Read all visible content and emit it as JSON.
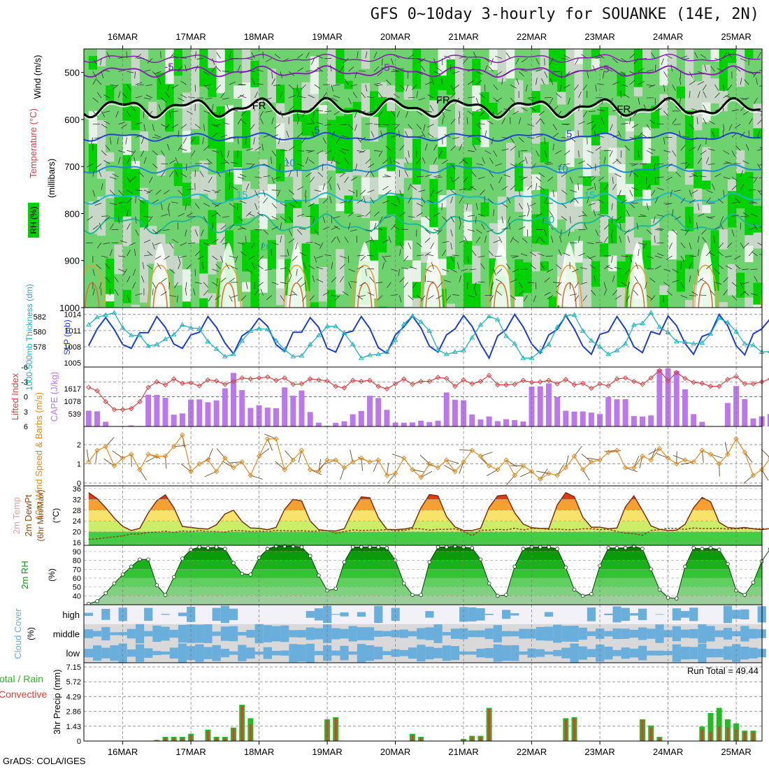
{
  "title": "GFS 0~10day 3-hourly for SOUANKE (14E, 2N)",
  "credit": "GrADS: COLA/IGES",
  "colors": {
    "rh_dark": "#00d200",
    "rh_mid": "#6ed36e",
    "rh_light": "#c8d7c8",
    "rh_pale": "#e8f2e8",
    "cape": "#bb77ee",
    "lifted": "#d94040",
    "slp": "#1d3fd0",
    "thk": "#1fb3c0",
    "wind": "#e08a1e",
    "temp": "#e9a2a0",
    "dew": "#8b4513",
    "rh": "#00a000",
    "cloud": "#6aaedc",
    "cloud_bg": "#d9d9d9",
    "precip_total": "#22bb22",
    "precip_conv": "#ee3333"
  },
  "chart_data": [
    {
      "type": "heatmap",
      "panel": "upper-air",
      "ylabels": [
        "Wind (m/s)",
        "Temperature (°C)",
        "RH (%)",
        "(millibars)"
      ],
      "y_ticks": [
        "500",
        "600",
        "700",
        "800",
        "900",
        "1000"
      ],
      "ylim": [
        1000,
        450
      ],
      "x_ticks": [
        "16MAR",
        "17MAR",
        "18MAR",
        "19MAR",
        "20MAR",
        "21MAR",
        "22MAR",
        "23MAR",
        "24MAR",
        "25MAR"
      ],
      "contour_labels": [
        {
          "text": "-5",
          "day": 0.68,
          "p": 495
        },
        {
          "text": "-5",
          "day": 3.85,
          "p": 497
        },
        {
          "text": "-5",
          "day": 7.07,
          "p": 500
        },
        {
          "text": "FR",
          "day": 2.0,
          "p": 578
        },
        {
          "text": "FR",
          "day": 4.7,
          "p": 566
        },
        {
          "text": "FR",
          "day": 7.35,
          "p": 585
        },
        {
          "text": "5",
          "day": 2.85,
          "p": 630
        },
        {
          "text": "5",
          "day": 6.55,
          "p": 638
        },
        {
          "text": "10",
          "day": 2.45,
          "p": 700
        },
        {
          "text": "10",
          "day": 6.45,
          "p": 712
        },
        {
          "text": "15",
          "day": 1.75,
          "p": 767
        },
        {
          "text": "15",
          "day": 6.85,
          "p": 768
        },
        {
          "text": "20",
          "day": 6.25,
          "p": 820
        },
        {
          "text": "20",
          "day": 2.1,
          "p": 878
        }
      ]
    },
    {
      "type": "line",
      "panel": "slp-thickness",
      "ylabel_left": "1000-500mb Thickness (dm)",
      "ylabel_right": "SLP (mb)",
      "left_ticks": [
        "582",
        "580",
        "578"
      ],
      "right_ticks": [
        "1014",
        "1011",
        "1008",
        "1005"
      ],
      "series": [
        {
          "name": "SLP",
          "values": [
            1008.2,
            1011.3,
            1013.4,
            1011.2,
            1008.4,
            1007.7,
            1010.6,
            1010.6,
            1013.6,
            1011.6,
            1008.5,
            1007.7,
            1010.2,
            1010.7,
            1013.6,
            1011.6,
            1008.7,
            1006.7,
            1010.0,
            1011.1,
            1013.3,
            1011.8,
            1008.4,
            1007.1,
            1010.7,
            1010.7,
            1013.4,
            1011.6,
            1007.7,
            1007.0,
            1010.5,
            1010.9,
            1013.6,
            1011.4,
            1007.8,
            1006.8,
            1010.2,
            1011.7,
            1013.7,
            1011.5,
            1008.1,
            1007.0,
            1010.2,
            1011.3,
            1013.8,
            1011.8,
            1008.5,
            1005.9,
            1010.0,
            1011.2,
            1014.0,
            1011.7,
            1008.5,
            1006.8,
            1010.2,
            1011.2,
            1013.8,
            1011.3,
            1008.1,
            1006.6,
            1010.3,
            1010.8,
            1013.6,
            1011.3,
            1008.0,
            1006.9,
            1010.8,
            1010.3,
            1013.7,
            1011.9,
            1008.6,
            1006.6,
            1009.9,
            1010.5,
            1014.0,
            1011.9,
            1008.2,
            1006.5,
            1010.4,
            1011.3,
            1013.2
          ]
        },
        {
          "name": "Thickness",
          "values": [
            580.9,
            581.9,
            582.2,
            582.5,
            580.5,
            579.5,
            579.5,
            578.1,
            578.3,
            579.0,
            579.6,
            580.9,
            580.5,
            580.4,
            578.7,
            577.7,
            576.7,
            577.0,
            578.8,
            580.1,
            580.4,
            580.3,
            578.8,
            577.6,
            576.7,
            576.8,
            578.3,
            579.5,
            580.7,
            580.7,
            579.8,
            578.3,
            576.5,
            576.9,
            577.0,
            577.3,
            578.9,
            581.0,
            582.1,
            581.3,
            580.1,
            577.6,
            577.0,
            577.3,
            577.5,
            579.2,
            580.9,
            582.0,
            581.6,
            579.4,
            578.4,
            576.5,
            576.5,
            577.4,
            578.3,
            580.6,
            582.1,
            582.2,
            580.1,
            578.8,
            578.0,
            577.0,
            577.5,
            578.4,
            580.9,
            581.1,
            582.5,
            580.6,
            579.9,
            578.7,
            578.6,
            578.4,
            578.5,
            579.7,
            581.8,
            581.2,
            580.0,
            578.4,
            578.2,
            577.3,
            577.4
          ]
        }
      ]
    },
    {
      "type": "bar",
      "panel": "cape-lifted-index",
      "ylabel_left": "Lifted Index",
      "ylabel_right": "CAPE (J/kg)",
      "left_ticks": [
        "-6",
        "-3",
        "0",
        "3",
        "6"
      ],
      "right_ticks": [
        "1617",
        "1078",
        "539"
      ],
      "series": [
        {
          "name": "CAPE",
          "values": [
            673,
            645,
            199,
            12,
            11,
            44,
            18,
            1357,
            1350,
            1225,
            503,
            558,
            1151,
            1156,
            1034,
            1114,
            1629,
            2286,
            1553,
            791,
            906,
            804,
            780,
            1670,
            1313,
            1538,
            616,
            161,
            26,
            156,
            220,
            520,
            661,
            1311,
            1215,
            710,
            166,
            162,
            172,
            246,
            187,
            246,
            1453,
            1142,
            1120,
            512,
            299,
            427,
            227,
            308,
            268,
            211,
            1702,
            1715,
            1842,
            1258,
            671,
            634,
            641,
            592,
            531,
            1252,
            1162,
            1164,
            445,
            425,
            471,
            2443,
            2486,
            2370,
            1588,
            527,
            197,
            16,
            15,
            1002,
            1729,
            1170,
            342,
            434,
            527,
            698
          ]
        },
        {
          "name": "Lifted Index",
          "values": [
            -1.9,
            -1.2,
            1.0,
            2.6,
            2.6,
            2.4,
            1.0,
            -1.9,
            -3.0,
            -2.4,
            -3.6,
            -2.7,
            -2.8,
            -2.2,
            -3.4,
            -3.2,
            -2.5,
            -3.1,
            -3.8,
            -3.6,
            -3.8,
            -4.0,
            -3.3,
            -3.8,
            -2.5,
            -2.6,
            -3.6,
            -3.4,
            -3.2,
            -2.1,
            -1.8,
            -3.3,
            -3.1,
            -3.3,
            -2.1,
            -1.6,
            -2.6,
            -3.6,
            -2.5,
            -3.1,
            -3.1,
            -3.9,
            -3.7,
            -2.1,
            -3.4,
            -2.6,
            -3.1,
            -4.3,
            -2.4,
            -2.4,
            -2.5,
            -3.3,
            -2.9,
            -3.0,
            -3.3,
            -2.6,
            -3.5,
            -2.4,
            -2.7,
            -1.7,
            -2.6,
            -2.2,
            -3.6,
            -3.8,
            -3.1,
            -2.5,
            -3.8,
            -5.3,
            -3.2,
            -4.9,
            -3.7,
            -2.9,
            -2.7,
            -2.1,
            -2.1,
            -3.5,
            -4.1,
            -2.6,
            -2.6,
            -3.0,
            -3.6,
            -3.3
          ]
        }
      ]
    },
    {
      "type": "line",
      "panel": "wind10m",
      "ylabel": "10m Wind Speed & Barbs (m/s)",
      "y_ticks": [
        "0",
        "1",
        "2"
      ],
      "ylim": [
        0,
        2.8
      ],
      "series": [
        {
          "name": "10m Wind Speed",
          "values": [
            1.1,
            1.7,
            1.9,
            0.9,
            1.3,
            1.5,
            0.7,
            1.5,
            1.4,
            1.4,
            1.9,
            2.5,
            0.6,
            1.0,
            1.2,
            0.6,
            1.3,
            0.8,
            1.1,
            0.4,
            1.4,
            2.3,
            2.3,
            0.7,
            1.2,
            1.7,
            0.7,
            0.6,
            1.2,
            1.2,
            0.8,
            1.1,
            1.3,
            1.1,
            1.2,
            0.4,
            0.5,
            1.3,
            0.7,
            0.3,
            1.0,
            0.8,
            1.2,
            0.6,
            1.1,
            1.7,
            1.4,
            0.9,
            0.7,
            1.2,
            0.4,
            0.9,
            0.6,
            0.2,
            0.5,
            0.4,
            0.8,
            1.4,
            0.7,
            1.1,
            1.2,
            1.6,
            1.7,
            0.8,
            0.8,
            1.4,
            1.2,
            1.8,
            1.3,
            1.0,
            1.2,
            1.1,
            1.7,
            1.5,
            1.0,
            1.5,
            2.3,
            1.6,
            0.4,
            0.7,
            1.3,
            1.3
          ]
        }
      ]
    },
    {
      "type": "area",
      "panel": "temperature",
      "ylabel": "2m Temp 2m DewPt (6hr Min/Max) (°C)",
      "y_ticks": [
        "36",
        "32",
        "28",
        "24",
        "20",
        "16"
      ],
      "ylim": [
        15,
        37
      ],
      "series": [
        {
          "name": "2m Temp",
          "values": [
            34.5,
            32.3,
            28.9,
            25.1,
            22.0,
            20.5,
            21.3,
            27.0,
            31.5,
            33.7,
            28.9,
            22.0,
            21.6,
            21.2,
            21.0,
            22.6,
            26.6,
            28.0,
            23.8,
            21.4,
            21.3,
            20.8,
            21.6,
            28.3,
            32.0,
            31.4,
            24.0,
            20.8,
            20.4,
            20.3,
            21.1,
            27.8,
            32.9,
            32.6,
            25.2,
            20.9,
            20.8,
            21.0,
            21.6,
            28.8,
            33.8,
            33.3,
            25.6,
            21.8,
            20.5,
            20.5,
            21.3,
            29.0,
            33.3,
            33.6,
            27.0,
            22.9,
            21.5,
            21.3,
            21.2,
            29.9,
            34.5,
            33.0,
            25.4,
            21.7,
            21.7,
            21.1,
            21.4,
            29.2,
            33.3,
            27.9,
            22.2,
            20.9,
            20.5,
            20.6,
            22.8,
            28.9,
            32.7,
            31.1,
            23.5,
            21.6,
            21.3,
            21.6,
            21.1,
            20.8,
            21.2,
            21.0
          ]
        },
        {
          "name": "2m DewPt",
          "values": [
            17.2,
            17.4,
            17.8,
            18.1,
            18.5,
            19.2,
            19.2,
            19.8,
            19.9,
            20.2,
            19.8,
            20.3,
            20.1,
            20.4,
            20.1,
            20.1,
            19.9,
            20.5,
            20.4,
            20.1,
            20.2,
            20.1,
            20.5,
            20.4,
            20.3,
            20.4,
            20.2,
            20.3,
            20.5,
            19.4,
            20.1,
            20.7,
            20.5,
            20.6,
            20.6,
            20.8,
            20.4,
            20.5,
            21.1,
            21.1,
            20.6,
            20.9,
            20.9,
            21.1,
            20.1,
            18.6,
            20.6,
            20.6,
            20.9,
            20.7,
            21.3,
            20.7,
            21.2,
            21.2,
            20.9,
            21.0,
            20.8,
            20.8,
            21.1,
            21.1,
            20.8,
            20.9,
            20.1,
            19.5,
            19.3,
            18.7,
            20.5,
            20.8,
            21.3,
            21.2,
            20.9,
            21.4,
            21.2,
            21.2,
            21.3,
            21.0,
            21.1,
            21.2,
            21.2,
            21.1,
            21.1,
            21.1
          ]
        }
      ]
    },
    {
      "type": "area",
      "panel": "rh2m",
      "ylabel": "2m RH (%)",
      "y_ticks": [
        "90",
        "80",
        "70",
        "60",
        "50",
        "40"
      ],
      "ylim": [
        30,
        97
      ],
      "series": [
        {
          "name": "2m RH",
          "values": [
            31,
            34,
            43,
            54,
            64,
            73,
            81,
            81,
            52,
            41,
            61,
            82,
            92,
            95,
            94,
            95,
            93,
            77,
            65,
            64,
            83,
            93,
            96,
            96,
            96,
            95,
            85,
            63,
            46,
            48,
            78,
            95,
            95,
            95,
            95,
            94,
            80,
            54,
            41,
            41,
            78,
            95,
            95,
            96,
            95,
            94,
            81,
            54,
            40,
            41,
            73,
            93,
            95,
            95,
            95,
            93,
            72,
            47,
            40,
            42,
            74,
            94,
            94,
            94,
            96,
            93,
            70,
            47,
            38,
            37,
            73,
            94,
            93,
            94,
            92,
            76,
            46,
            41,
            55,
            79,
            93,
            93,
            94,
            94
          ]
        }
      ]
    },
    {
      "type": "heatmap",
      "panel": "cloud-cover",
      "ylabel": "Cloud Cover (%)",
      "rows": [
        "high",
        "middle",
        "low"
      ]
    },
    {
      "type": "bar",
      "panel": "precip",
      "ylabel": "3hr Precip (mm)",
      "legend": [
        "Total / Rain",
        "Convective"
      ],
      "annotation": "Run Total = 49.44",
      "y_ticks": [
        "7.15",
        "5.72",
        "4.29",
        "2.86",
        "1.43",
        "0"
      ],
      "ylim": [
        0,
        7.15
      ],
      "series": [
        {
          "name": "Total / Rain",
          "values": [
            0,
            0,
            0,
            0,
            0,
            0,
            0,
            0,
            0.1,
            0.4,
            0.4,
            0.4,
            0.7,
            0,
            1.1,
            0.4,
            0.4,
            1.3,
            3.5,
            2.2,
            0,
            0,
            0,
            0,
            0,
            0,
            0,
            0,
            2.1,
            2.3,
            0,
            0,
            0,
            0,
            0,
            0,
            0,
            0,
            0.7,
            0.4,
            0,
            0,
            0,
            0,
            0.2,
            0.5,
            0.5,
            3.2,
            0,
            0,
            0,
            0,
            0,
            0,
            0,
            0,
            2.2,
            2.3,
            0,
            0,
            0,
            0,
            0,
            0,
            0,
            2.1,
            1.5,
            0.4,
            0,
            0,
            0,
            0,
            1.4,
            2.7,
            3.2,
            2.1,
            1.7,
            1.0,
            1.0,
            0,
            0,
            6.9,
            0,
            0
          ]
        },
        {
          "name": "Convective",
          "values": [
            0,
            0,
            0,
            0,
            0,
            0,
            0,
            0,
            0.1,
            0.3,
            0.3,
            0.3,
            0.6,
            0,
            1.0,
            0.3,
            0.3,
            1.2,
            3.4,
            1.6,
            0,
            0,
            0,
            0,
            0,
            0,
            0,
            0,
            2.0,
            2.2,
            0,
            0,
            0,
            0,
            0,
            0,
            0,
            0,
            0.6,
            0.3,
            0,
            0,
            0,
            0,
            0.1,
            0.4,
            0.4,
            3.1,
            0,
            0,
            0,
            0,
            0,
            0,
            0,
            0,
            2.1,
            2.2,
            0,
            0,
            0,
            0,
            0,
            0,
            0,
            2.0,
            1.3,
            0.3,
            0,
            0,
            0,
            0,
            1.1,
            0.9,
            1.4,
            1.3,
            1.1,
            0.9,
            0.9,
            0,
            0,
            6.8,
            0,
            0
          ]
        }
      ]
    }
  ]
}
